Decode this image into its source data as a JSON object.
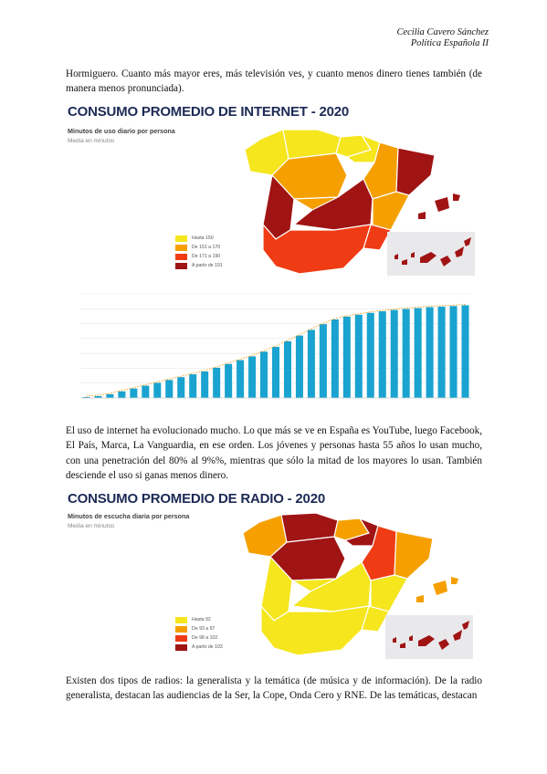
{
  "header": {
    "author": "Cecilia Cavero Sánchez",
    "course": "Política Española II"
  },
  "paragraphs": {
    "p1": "Hormiguero. Cuanto más mayor eres, más televisión ves, y cuanto menos dinero tienes también (de manera menos pronunciada).",
    "p2": "El uso de internet ha evolucionado mucho. Lo que más se ve en España es YouTube, luego Facebook, El País, Marca, La Vanguardia, en ese orden. Los jóvenes y personas hasta 55 años lo usan mucho, con una penetración del 80% al 9%%, mientras que sólo la mitad de los mayores lo usan. También desciende el uso si ganas menos dinero.",
    "p3": "Existen dos tipos de radios: la generalista y la temática (de música y de información). De la radio generalista, destacan las audiencias de la Ser, la Cope, Onda Cero y RNE. De las temáticas, destacan"
  },
  "internet_map": {
    "title": "CONSUMO PROMEDIO DE INTERNET - 2020",
    "subtitle": "Minutos de uso diario por persona",
    "note": "Media en minutos",
    "legend": [
      {
        "label": "Hasta 150",
        "color": "#f5e61e"
      },
      {
        "label": "De 151 a 170",
        "color": "#f5a000"
      },
      {
        "label": "De 171 a 190",
        "color": "#f03c14"
      },
      {
        "label": "A partir de 191",
        "color": "#a01414"
      }
    ]
  },
  "radio_map": {
    "title": "CONSUMO PROMEDIO DE RADIO - 2020",
    "subtitle": "Minutos de escucha diaria por persona",
    "note": "Media en minutos",
    "legend": [
      {
        "label": "Hasta 92",
        "color": "#f5e61e"
      },
      {
        "label": "De 93 a 97",
        "color": "#f5a000"
      },
      {
        "label": "De 98 a 102",
        "color": "#f03c14"
      },
      {
        "label": "A partir de 103",
        "color": "#a01414"
      }
    ]
  },
  "chart_data": {
    "type": "bar",
    "bar_color": "#1aa3d0",
    "line_color": "#f5a623",
    "values": [
      0.5,
      1,
      2,
      3.5,
      5,
      6.5,
      8,
      9.5,
      11,
      12.5,
      14,
      16,
      18,
      20,
      22,
      24.5,
      27,
      30,
      33,
      36,
      39,
      41.5,
      43,
      44,
      45,
      45.8,
      46.5,
      47,
      47.5,
      48,
      48.3,
      48.6,
      49
    ],
    "ylim": [
      0,
      55
    ],
    "grid": true
  }
}
